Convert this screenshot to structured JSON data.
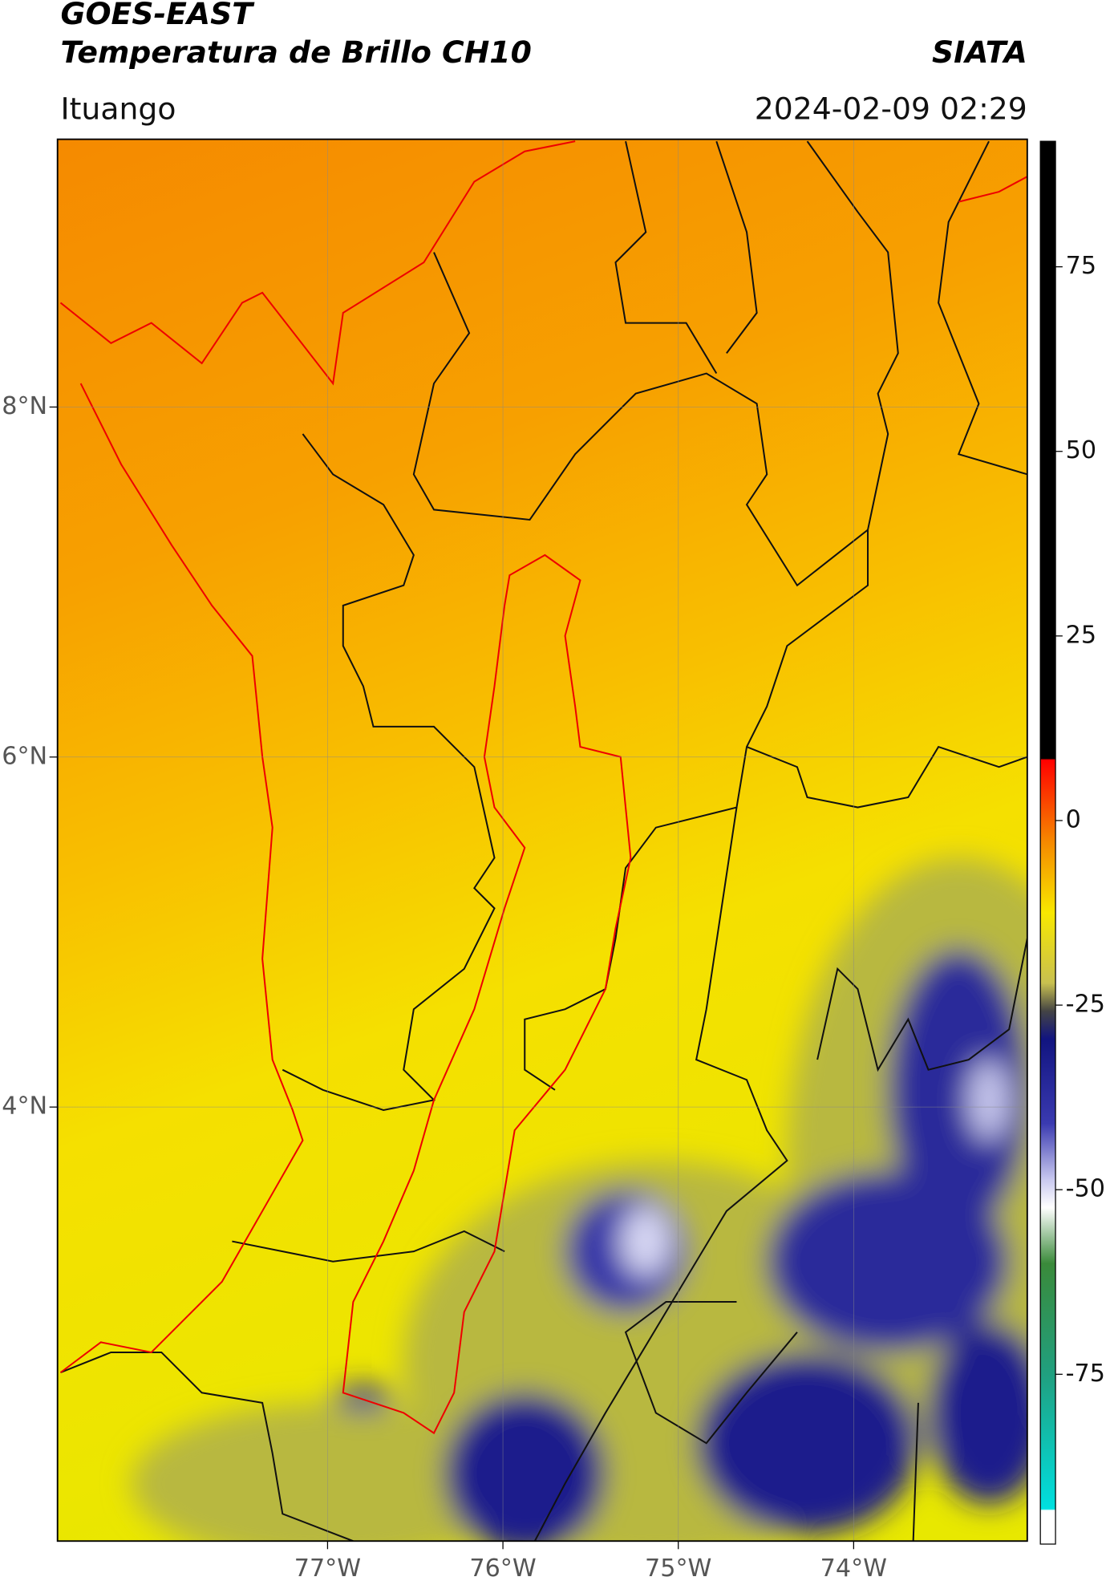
{
  "header": {
    "title": "GOES-EAST",
    "subtitle": "Temperatura de Brillo CH10",
    "agency": "SIATA",
    "region": "Ituango",
    "timestamp": "2024-02-09 02:29"
  },
  "map": {
    "xlim": [
      -78.54,
      -73.01
    ],
    "ylim": [
      1.52,
      9.53
    ],
    "xticks": [
      {
        "value": -77,
        "label": "77°W"
      },
      {
        "value": -76,
        "label": "76°W"
      },
      {
        "value": -75,
        "label": "75°W"
      },
      {
        "value": -74,
        "label": "74°W"
      }
    ],
    "yticks": [
      {
        "value": 8,
        "label": "8°N"
      },
      {
        "value": 6,
        "label": "6°N"
      },
      {
        "value": 4,
        "label": "4°N"
      }
    ],
    "grid": true
  },
  "colorbar": {
    "clim": [
      -98,
      92
    ],
    "ticks": [
      75,
      50,
      25,
      0,
      -25,
      -50,
      -75
    ]
  }
}
